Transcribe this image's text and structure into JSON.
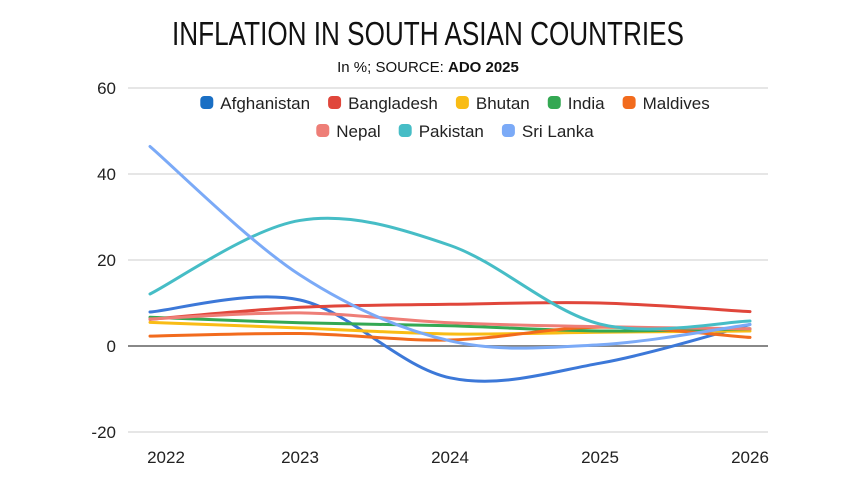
{
  "chart_data": {
    "type": "line",
    "title": "INFLATION IN SOUTH ASIAN COUNTRIES",
    "subtitle": {
      "prefix": "In %; SOURCE: ",
      "source": "ADO 2025"
    },
    "categories": [
      "2022",
      "2023",
      "2024",
      "2025",
      "2026"
    ],
    "ylim": [
      -20,
      60
    ],
    "yticks": [
      -20,
      0,
      20,
      40,
      60
    ],
    "grid": true,
    "legend_position": "top",
    "smooth": true,
    "series": [
      {
        "name": "Afghanistan",
        "color": "#3c78d8",
        "legend_color": "#1a6fc4",
        "values": [
          7.9,
          10.7,
          -7.4,
          -4.0,
          5.0
        ]
      },
      {
        "name": "Bangladesh",
        "color": "#e0463b",
        "values": [
          6.2,
          9.0,
          9.7,
          10.0,
          8.0
        ]
      },
      {
        "name": "Bhutan",
        "color": "#f9bc15",
        "values": [
          5.5,
          4.2,
          2.8,
          3.2,
          3.5
        ]
      },
      {
        "name": "India",
        "color": "#34a853",
        "values": [
          6.7,
          5.4,
          4.7,
          3.5,
          4.0
        ]
      },
      {
        "name": "Maldives",
        "color": "#f26b1d",
        "values": [
          2.3,
          2.9,
          1.4,
          4.4,
          2.0
        ]
      },
      {
        "name": "Nepal",
        "color": "#ee7e77",
        "values": [
          6.3,
          7.7,
          5.4,
          4.5,
          4.0
        ]
      },
      {
        "name": "Pakistan",
        "color": "#46bdc6",
        "values": [
          12.1,
          29.2,
          23.4,
          5.1,
          5.8
        ]
      },
      {
        "name": "Sri Lanka",
        "color": "#7baaf7",
        "values": [
          46.4,
          16.5,
          1.2,
          0.3,
          5.0
        ]
      }
    ]
  }
}
